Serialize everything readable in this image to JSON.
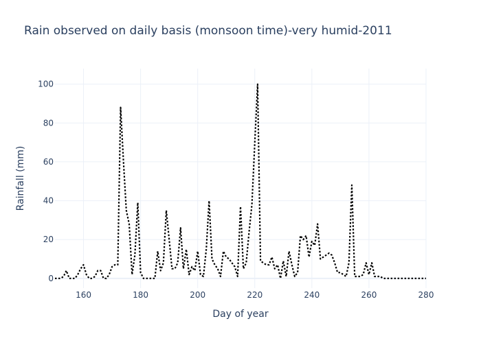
{
  "chart_data": {
    "type": "line",
    "title": "Rain observed on daily basis (monsoon time)-very humid-2011",
    "xlabel": "Day of year",
    "ylabel": "Rainfall (mm)",
    "xlim": [
      150,
      280
    ],
    "ylim": [
      -5,
      108
    ],
    "xticks": [
      160,
      180,
      200,
      220,
      240,
      260,
      280
    ],
    "yticks": [
      0,
      20,
      40,
      60,
      80,
      100
    ],
    "grid": true,
    "legend": "none",
    "series": [
      {
        "line_color": "#000000",
        "line_style": "dot",
        "x": [
          150,
          151,
          152,
          153,
          154,
          155,
          156,
          157,
          158,
          159,
          160,
          161,
          162,
          163,
          164,
          165,
          166,
          167,
          168,
          169,
          170,
          171,
          172,
          173,
          174,
          175,
          176,
          177,
          178,
          179,
          180,
          181,
          182,
          183,
          184,
          185,
          186,
          187,
          188,
          189,
          190,
          191,
          192,
          193,
          194,
          195,
          196,
          197,
          198,
          199,
          200,
          201,
          202,
          203,
          204,
          205,
          206,
          207,
          208,
          209,
          210,
          211,
          212,
          213,
          214,
          215,
          216,
          217,
          218,
          219,
          220,
          221,
          222,
          223,
          224,
          225,
          226,
          227,
          228,
          229,
          230,
          231,
          232,
          233,
          234,
          235,
          236,
          237,
          238,
          239,
          240,
          241,
          242,
          243,
          244,
          245,
          246,
          247,
          248,
          249,
          250,
          251,
          252,
          253,
          254,
          255,
          256,
          257,
          258,
          259,
          260,
          261,
          262,
          263,
          264,
          265,
          266,
          267,
          268,
          269,
          270,
          271,
          272,
          273,
          274,
          275,
          276,
          277,
          278,
          279,
          280
        ],
        "y": [
          0,
          0,
          0,
          1,
          4,
          0,
          0,
          0,
          2,
          5,
          7,
          2,
          0,
          0,
          1,
          4,
          4,
          0,
          0,
          2,
          6,
          7,
          7,
          88,
          60,
          35,
          28,
          2,
          12,
          39,
          3,
          0,
          0,
          0,
          0,
          0,
          14,
          4,
          8,
          35,
          20,
          5,
          5,
          8,
          26,
          5,
          15,
          2,
          6,
          4,
          14,
          2,
          1,
          15,
          40,
          10,
          7,
          5,
          1,
          14,
          11,
          10,
          8,
          6,
          1,
          37,
          5,
          8,
          24,
          38,
          70,
          100,
          9,
          8,
          7,
          7,
          11,
          5,
          7,
          0,
          9,
          1,
          14,
          7,
          1,
          3,
          22,
          20,
          22,
          11,
          19,
          17,
          28,
          10,
          11,
          12,
          13,
          12,
          8,
          3,
          3,
          2,
          1,
          8,
          48,
          1,
          1,
          1,
          2,
          8,
          2,
          8,
          1,
          1,
          1,
          0,
          0,
          0,
          0,
          0,
          0,
          0,
          0,
          0,
          0,
          0,
          0,
          0,
          0,
          0,
          0
        ]
      }
    ]
  }
}
